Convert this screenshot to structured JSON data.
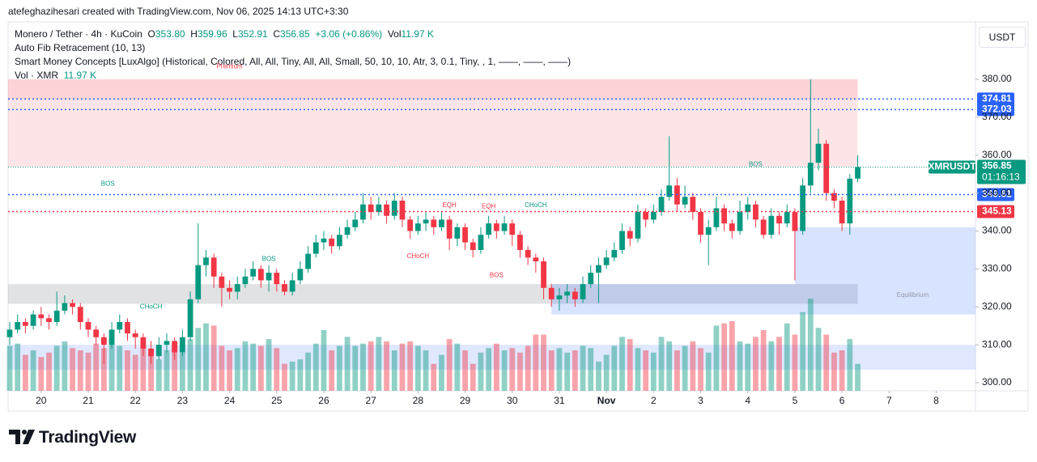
{
  "header": "atefeghazihesari created with TradingView.com, Nov 06, 2025 14:13 UTC+3:30",
  "legend": {
    "symbol": "Monero / Tether · 4h · KuCoin",
    "o_label": "O",
    "o": "353.80",
    "h_label": "H",
    "h": "359.96",
    "l_label": "L",
    "l": "352.91",
    "c_label": "C",
    "c": "356.85",
    "change": "+3.06 (+0.86%)",
    "vol_label": "Vol",
    "vol": "11.97 K",
    "indicator1": "Auto Fib Retracement (10, 13)",
    "indicator2": "Smart Money Concepts [LuxAlgo] (Historical, Colored, All, All, Tiny, All, All, Small, 50, 10, 10, Atr, 3, 0.1, Tiny, , 1, ——, ——, ——)",
    "indicator3": "Vol · XMR",
    "indicator3_value": "11.97 K"
  },
  "currency_button": "USDT",
  "logo": "TradingView",
  "chart_data": {
    "type": "candlestick",
    "up_color": "#089981",
    "down_color": "#f23645",
    "xlim": [
      -0.206,
      123
    ],
    "ylim": [
      297.87,
      394.93
    ],
    "volume_ylim": [
      0,
      72000
    ],
    "xticks": [
      {
        "value": 4,
        "label": "20"
      },
      {
        "value": 10,
        "label": "21"
      },
      {
        "value": 16,
        "label": "22"
      },
      {
        "value": 22,
        "label": "23"
      },
      {
        "value": 28,
        "label": "24"
      },
      {
        "value": 34,
        "label": "25"
      },
      {
        "value": 40,
        "label": "26"
      },
      {
        "value": 46,
        "label": "27"
      },
      {
        "value": 52,
        "label": "28"
      },
      {
        "value": 58,
        "label": "29"
      },
      {
        "value": 64,
        "label": "30"
      },
      {
        "value": 70,
        "label": "31"
      },
      {
        "value": 76,
        "label": "Nov"
      },
      {
        "value": 82,
        "label": "2"
      },
      {
        "value": 88,
        "label": "3"
      },
      {
        "value": 94,
        "label": "4"
      },
      {
        "value": 100,
        "label": "5"
      },
      {
        "value": 106,
        "label": "6"
      },
      {
        "value": 112,
        "label": "7"
      },
      {
        "value": 118,
        "label": "8"
      }
    ],
    "yticks": [
      {
        "value": 300,
        "label": "300.00"
      },
      {
        "value": 310,
        "label": "310.00"
      },
      {
        "value": 320,
        "label": "320.00"
      },
      {
        "value": 330,
        "label": "330.00"
      },
      {
        "value": 340,
        "label": "340.00"
      },
      {
        "value": 350,
        "label": "350.00"
      },
      {
        "value": 360,
        "label": "360.00"
      },
      {
        "value": 370,
        "label": "370.00"
      },
      {
        "value": 380,
        "label": "380.00"
      }
    ],
    "open": [
      312,
      314,
      316,
      315,
      318,
      317,
      316,
      319,
      321,
      320,
      316,
      314,
      312,
      310,
      314,
      316,
      313,
      312,
      309,
      307,
      310,
      311,
      308,
      312,
      322,
      331,
      333,
      328,
      325,
      324,
      326,
      328,
      330,
      327,
      329,
      326,
      324,
      327,
      330,
      334,
      337,
      338,
      336,
      339,
      341,
      343,
      347,
      345,
      347,
      344,
      348,
      343,
      340,
      342,
      343,
      341,
      343,
      338,
      341,
      337,
      335,
      339,
      342,
      340,
      342,
      339,
      335,
      333,
      332,
      325,
      322,
      323,
      324,
      322,
      326,
      329,
      331,
      333,
      335,
      340,
      338,
      345,
      343,
      345,
      349,
      352,
      347,
      349,
      345,
      339,
      341,
      346,
      342,
      340,
      345,
      347,
      343,
      339,
      344,
      342,
      345,
      340,
      352,
      358,
      363,
      350,
      348,
      342,
      353.8
    ],
    "high": [
      316,
      318,
      317,
      319,
      320,
      318,
      324,
      323,
      322,
      321,
      317,
      315,
      313,
      316,
      318,
      317,
      314,
      313,
      311,
      312,
      313,
      312,
      314,
      324,
      342,
      335,
      334,
      329,
      327,
      328,
      330,
      332,
      331,
      331,
      330,
      327,
      329,
      332,
      336,
      339,
      340,
      339,
      341,
      343,
      345,
      350,
      349,
      349,
      348,
      350,
      349,
      344,
      344,
      345,
      344,
      345,
      344,
      342,
      342,
      338,
      341,
      344,
      343,
      344,
      343,
      340,
      336,
      334,
      333,
      326,
      325,
      326,
      325,
      328,
      331,
      333,
      335,
      337,
      342,
      341,
      347,
      346,
      347,
      351,
      365,
      354,
      352,
      350,
      346,
      343,
      349,
      347,
      343,
      348,
      349,
      348,
      344,
      346,
      345,
      347,
      346,
      354,
      380,
      367,
      364,
      351,
      349,
      355,
      359.96
    ],
    "low": [
      310,
      313,
      313,
      314,
      315,
      314,
      315,
      318,
      318,
      314,
      312,
      310,
      305,
      309,
      313,
      311,
      309,
      307,
      305,
      306,
      308,
      306,
      307,
      311,
      321,
      328,
      325,
      320,
      322,
      322,
      325,
      327,
      325,
      324,
      324,
      323,
      323,
      326,
      329,
      333,
      335,
      334,
      335,
      338,
      340,
      342,
      343,
      344,
      342,
      343,
      341,
      338,
      339,
      340,
      339,
      340,
      335,
      336,
      335,
      333,
      334,
      338,
      338,
      339,
      336,
      333,
      331,
      329,
      322,
      320,
      319,
      321,
      320,
      321,
      325,
      321,
      330,
      332,
      334,
      336,
      337,
      341,
      342,
      344,
      348,
      345,
      346,
      343,
      337,
      331,
      340,
      340,
      338,
      339,
      343,
      341,
      338,
      338,
      339,
      341,
      327,
      339,
      350,
      356,
      348,
      346,
      340,
      339,
      352.91
    ],
    "close": [
      314,
      316,
      315,
      318,
      317,
      316,
      319,
      321,
      320,
      316,
      314,
      312,
      310,
      314,
      316,
      313,
      312,
      309,
      307,
      310,
      311,
      308,
      312,
      322,
      331,
      333,
      328,
      325,
      324,
      326,
      328,
      330,
      327,
      329,
      326,
      324,
      327,
      330,
      334,
      337,
      338,
      336,
      339,
      341,
      343,
      347,
      345,
      347,
      344,
      348,
      343,
      340,
      342,
      343,
      341,
      343,
      338,
      341,
      337,
      335,
      339,
      342,
      340,
      342,
      339,
      335,
      333,
      332,
      325,
      322,
      323,
      324,
      322,
      326,
      329,
      331,
      333,
      335,
      340,
      338,
      345,
      343,
      345,
      349,
      352,
      347,
      349,
      345,
      339,
      341,
      346,
      342,
      340,
      345,
      347,
      343,
      339,
      344,
      342,
      345,
      340,
      352,
      358,
      363,
      350,
      348,
      342,
      353.8,
      356.85
    ],
    "volume": [
      20000,
      21000,
      16000,
      18000,
      15000,
      17000,
      20000,
      22000,
      19000,
      18000,
      17000,
      21000,
      19000,
      24000,
      20000,
      18000,
      16000,
      19000,
      17000,
      14000,
      18000,
      21000,
      17000,
      23000,
      28000,
      30000,
      29000,
      20000,
      18000,
      19000,
      22000,
      21000,
      20000,
      23000,
      19000,
      12000,
      13000,
      14000,
      17000,
      21000,
      27000,
      18000,
      20000,
      24000,
      20000,
      21000,
      22000,
      24000,
      22000,
      18000,
      21000,
      22000,
      20000,
      18000,
      12000,
      16000,
      23000,
      21000,
      18000,
      12000,
      17000,
      19000,
      21000,
      18000,
      19000,
      17000,
      20000,
      25000,
      25000,
      18000,
      19000,
      17000,
      18000,
      20000,
      19000,
      13000,
      16000,
      20000,
      24000,
      23000,
      19000,
      18000,
      17000,
      24000,
      22000,
      18000,
      20000,
      22000,
      19000,
      17000,
      29000,
      30000,
      31000,
      22000,
      21000,
      24000,
      27000,
      22000,
      24000,
      30000,
      25000,
      35000,
      41000,
      28000,
      25000,
      17000,
      18000,
      23000,
      11970
    ],
    "levels": [
      {
        "value": 374.81,
        "label": "374.81",
        "color": "#2962ff"
      },
      {
        "value": 372.03,
        "label": "372.03",
        "color": "#2962ff"
      },
      {
        "value": 349.61,
        "label": "349.61",
        "color": "#2962ff"
      },
      {
        "value": 345.13,
        "label": "345.13",
        "color": "#f23645"
      }
    ],
    "last_price": {
      "value": 356.85,
      "symbol": "XMRUSDT",
      "label": "356.85",
      "countdown": "01:16:13",
      "color": "#089981"
    },
    "zones": [
      {
        "from": -0.206,
        "to": 108,
        "top": 380,
        "bottom": 374.81,
        "color": "rgba(242,54,69,0.22)"
      },
      {
        "from": -0.206,
        "to": 108,
        "top": 374.81,
        "bottom": 357,
        "color": "rgba(242,54,69,0.13)"
      },
      {
        "from": -0.206,
        "to": 108,
        "top": 326,
        "bottom": 320.8,
        "color": "rgba(120,123,134,0.22)"
      },
      {
        "from": 69,
        "to": 123,
        "top": 326,
        "bottom": 318,
        "color": "rgba(41,98,255,0.18)"
      },
      {
        "from": 100,
        "to": 123,
        "top": 341,
        "bottom": 326,
        "color": "rgba(41,98,255,0.18)"
      },
      {
        "from": -0.206,
        "to": 123,
        "top": 310,
        "bottom": 303.4,
        "color": "rgba(41,98,255,0.15)"
      }
    ],
    "annotations": [
      {
        "text": "Premium",
        "x": 28,
        "y": 383.3,
        "color": "#f23645"
      },
      {
        "text": "Equilibrium",
        "x": 115,
        "y": 323.1,
        "color": "#9598a1"
      },
      {
        "text": "BOS",
        "x": 12.5,
        "y": 352.4,
        "color": "#089981"
      },
      {
        "text": "BOS",
        "x": 33,
        "y": 332.6,
        "color": "#089981"
      },
      {
        "text": "CHoCH",
        "x": 18,
        "y": 320,
        "color": "#089981"
      },
      {
        "text": "EQH",
        "x": 56,
        "y": 346.7,
        "color": "#f23645"
      },
      {
        "text": "EQH",
        "x": 61,
        "y": 346.4,
        "color": "#f23645"
      },
      {
        "text": "CHoCH",
        "x": 67,
        "y": 346.7,
        "color": "#089981"
      },
      {
        "text": "CHoCH",
        "x": 52,
        "y": 333.3,
        "color": "#f23645"
      },
      {
        "text": "BOS",
        "x": 62,
        "y": 328.3,
        "color": "#f23645"
      },
      {
        "text": "BOS",
        "x": 95,
        "y": 357.5,
        "color": "#089981"
      }
    ]
  }
}
